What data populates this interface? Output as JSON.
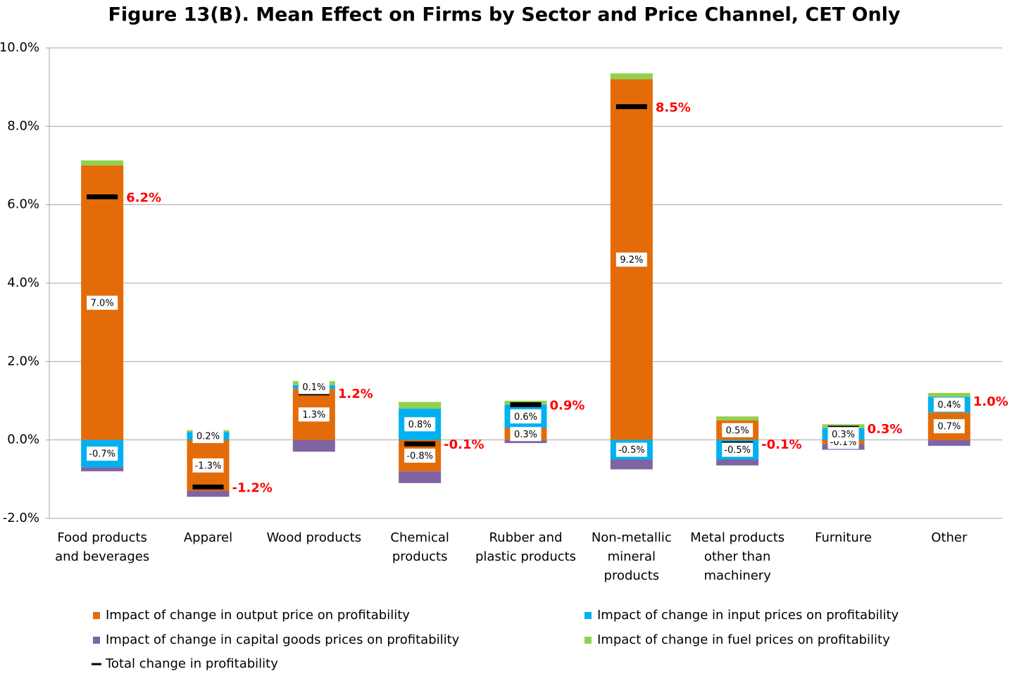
{
  "chart_data": {
    "type": "stacked-bar",
    "title": "Figure 13(B). Mean Effect on Firms by Sector and Price Channel, CET Only",
    "categories": [
      "Food products and beverages",
      "Apparel",
      "Wood products",
      "Chemical products",
      "Rubber and plastic products",
      "Non-metallic mineral products",
      "Metal products other than machinery",
      "Furniture",
      "Other"
    ],
    "series": [
      {
        "name": "Impact of change in output price on profitability",
        "color": "#e36c09",
        "values": [
          7.0,
          -1.3,
          1.3,
          -0.8,
          0.3,
          9.2,
          0.5,
          -0.1,
          0.7
        ],
        "value_labels": [
          "7.0%",
          "-1.3%",
          "1.3%",
          "-0.8%",
          "0.3%",
          "9.2%",
          "0.5%",
          "-0.1%",
          "0.7%"
        ]
      },
      {
        "name": "Impact of change in input prices on profitability",
        "color": "#00b0f0",
        "values": [
          -0.7,
          0.2,
          0.1,
          0.8,
          0.6,
          -0.5,
          -0.5,
          0.3,
          0.4
        ],
        "value_labels": [
          "-0.7%",
          "0.2%",
          "0.1%",
          "0.8%",
          "0.6%",
          "-0.5%",
          "-0.5%",
          "0.3%",
          "0.4%"
        ]
      },
      {
        "name": "Impact of change in capital goods prices on profitability",
        "color": "#8064a2",
        "values": [
          -0.1,
          -0.15,
          -0.3,
          -0.3,
          -0.08,
          -0.25,
          -0.15,
          -0.15,
          -0.15
        ]
      },
      {
        "name": "Impact of change in fuel prices on profitability",
        "color": "#92d050",
        "values": [
          0.13,
          0.05,
          0.1,
          0.17,
          0.1,
          0.15,
          0.1,
          0.1,
          0.1
        ]
      }
    ],
    "totals": {
      "name": "Total change in profitability",
      "color": "#000000",
      "values": [
        6.2,
        -1.2,
        1.2,
        -0.1,
        0.9,
        8.5,
        -0.1,
        0.3,
        1.0
      ],
      "value_labels": [
        "6.2%",
        "-1.2%",
        "1.2%",
        "-0.1%",
        "0.9%",
        "8.5%",
        "-0.1%",
        "0.3%",
        "1.0%"
      ],
      "label_color": "#ff0000"
    },
    "ylim": [
      -2,
      10
    ],
    "yticks": [
      {
        "value": -2,
        "label": "-2.0%"
      },
      {
        "value": 0,
        "label": "0.0%"
      },
      {
        "value": 2,
        "label": "2.0%"
      },
      {
        "value": 4,
        "label": "4.0%"
      },
      {
        "value": 6,
        "label": "6.0%"
      },
      {
        "value": 8,
        "label": "8.0%"
      },
      {
        "value": 10,
        "label": "10.0%"
      }
    ],
    "grid": true,
    "legend": "bottom"
  }
}
